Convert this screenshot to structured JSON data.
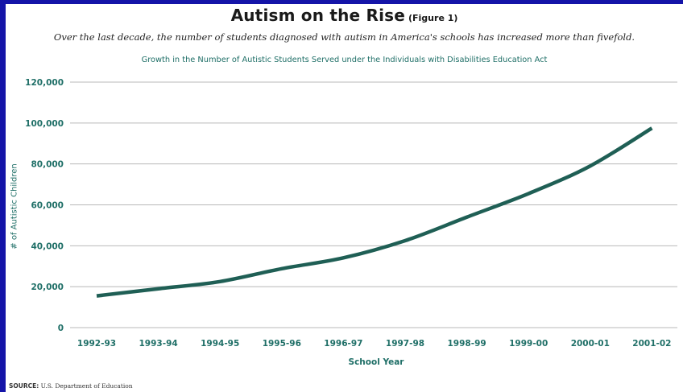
{
  "header": {
    "title": "Autism on the Rise",
    "figure_label": "(Figure 1)",
    "subtitle": "Over the last decade, the number of students diagnosed with autism in America's schools  has increased more than fivefold."
  },
  "source": {
    "label": "SOURCE:",
    "text": "U.S. Department of Education"
  },
  "colors": {
    "frame": "#1414a8",
    "line": "#1f5f55",
    "axis_text": "#1f6f67",
    "grid": "#b8b8b8"
  },
  "chart_data": {
    "type": "line",
    "title": "Growth in the Number of Autistic Students Served under the Individuals with Disabilities Education Act",
    "xlabel": "School Year",
    "ylabel": "# of Autistic Children",
    "categories": [
      "1992-93",
      "1993-94",
      "1994-95",
      "1995-96",
      "1996-97",
      "1997-98",
      "1998-99",
      "1999-00",
      "2000-01",
      "2001-02"
    ],
    "series": [
      {
        "values": [
          15500,
          19000,
          22500,
          28800,
          34100,
          42500,
          54000,
          65500,
          79000,
          97500
        ]
      }
    ],
    "yticks": [
      0,
      20000,
      40000,
      60000,
      80000,
      100000,
      120000
    ],
    "ytick_labels": [
      "0",
      "20,000",
      "40,000",
      "60,000",
      "80,000",
      "100,000",
      "120,000"
    ],
    "ylim": [
      0,
      120000
    ],
    "grid": true,
    "legend": "none"
  }
}
